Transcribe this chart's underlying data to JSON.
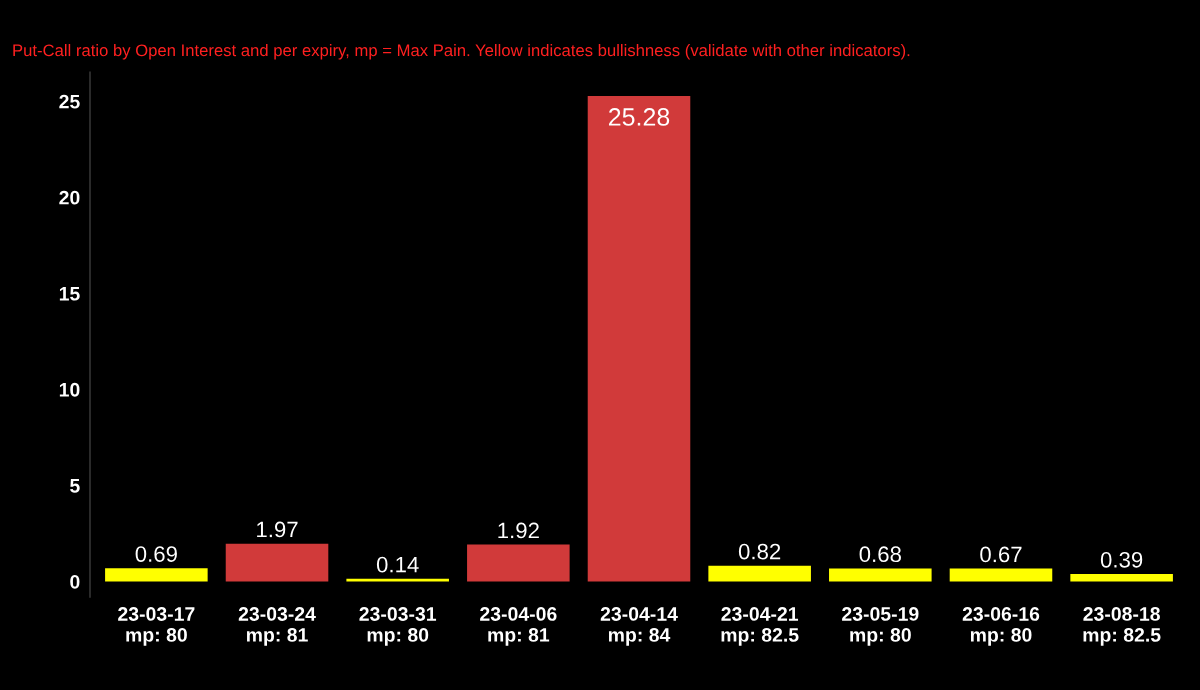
{
  "chart_data": {
    "type": "bar",
    "subtitle": "Put-Call ratio by Open Interest and per expiry, mp = Max Pain. Yellow indicates bullishness (validate with other indicators).",
    "categories": [
      "23-03-17\nmp: 80",
      "23-03-24\nmp: 81",
      "23-03-31\nmp: 80",
      "23-04-06\nmp: 81",
      "23-04-14\nmp: 84",
      "23-04-21\nmp: 82.5",
      "23-05-19\nmp: 80",
      "23-06-16\nmp: 80",
      "23-08-18\nmp: 82.5"
    ],
    "values": [
      0.69,
      1.97,
      0.14,
      1.92,
      25.28,
      0.82,
      0.68,
      0.67,
      0.39
    ],
    "colors": [
      "#ffff00",
      "#d13a3a",
      "#ffff00",
      "#d13a3a",
      "#d13a3a",
      "#ffff00",
      "#ffff00",
      "#ffff00",
      "#ffff00"
    ],
    "ylim": [
      -0.8,
      26.5
    ],
    "yticks": [
      0,
      5,
      10,
      15,
      20,
      25
    ],
    "grid": false,
    "data_labels": true
  }
}
